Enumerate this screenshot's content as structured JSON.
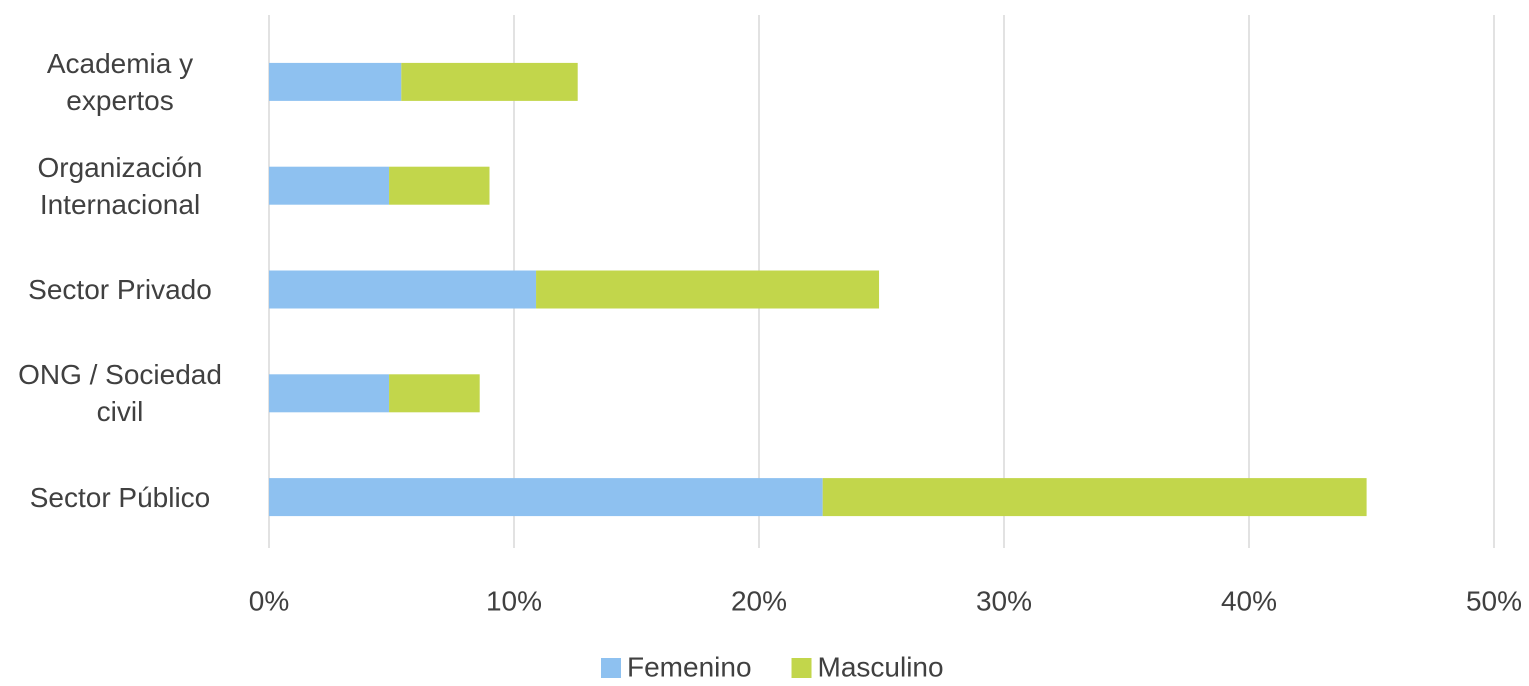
{
  "chart_data": {
    "type": "stacked_barh",
    "categories": [
      "Academia y expertos",
      "Organización Internacional",
      "Sector Privado",
      "ONG / Sociedad civil",
      "Sector Público"
    ],
    "series": [
      {
        "name": "Femenino",
        "color": "#8ec1f0",
        "values": [
          5.4,
          4.9,
          10.9,
          4.9,
          22.6
        ]
      },
      {
        "name": "Masculino",
        "color": "#c2d64b",
        "values": [
          7.2,
          4.1,
          14.0,
          3.7,
          22.2
        ]
      }
    ],
    "xlim": [
      0,
      50
    ],
    "xticks": [
      {
        "value": 0,
        "label": "0%"
      },
      {
        "value": 10,
        "label": "10%"
      },
      {
        "value": 20,
        "label": "20%"
      },
      {
        "value": 30,
        "label": "30%"
      },
      {
        "value": 40,
        "label": "40%"
      },
      {
        "value": 50,
        "label": "50%"
      }
    ],
    "grid": true,
    "legend": "bottom"
  }
}
